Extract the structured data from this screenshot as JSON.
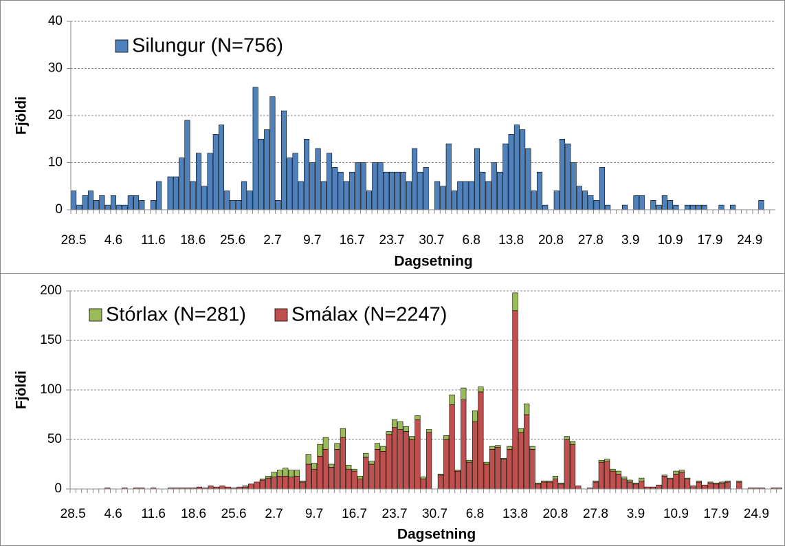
{
  "chart_data": [
    {
      "type": "bar",
      "title": null,
      "legend": "top-left",
      "ylabel": "Fjöldi",
      "xlabel": "Dagsetning",
      "categories": [
        "28.5",
        null,
        null,
        null,
        null,
        null,
        null,
        "4.6",
        null,
        null,
        null,
        null,
        null,
        null,
        "11.6",
        null,
        null,
        null,
        null,
        null,
        null,
        "18.6",
        null,
        null,
        null,
        null,
        null,
        null,
        "25.6",
        null,
        null,
        null,
        null,
        null,
        null,
        "2.7",
        null,
        null,
        null,
        null,
        null,
        null,
        "9.7",
        null,
        null,
        null,
        null,
        null,
        null,
        "16.7",
        null,
        null,
        null,
        null,
        null,
        null,
        "23.7",
        null,
        null,
        null,
        null,
        null,
        null,
        "30.7",
        null,
        null,
        null,
        null,
        null,
        null,
        "6.8",
        null,
        null,
        null,
        null,
        null,
        null,
        "13.8",
        null,
        null,
        null,
        null,
        null,
        null,
        "20.8",
        null,
        null,
        null,
        null,
        null,
        null,
        "27.8",
        null,
        null,
        null,
        null,
        null,
        null,
        "3.9",
        null,
        null,
        null,
        null,
        null,
        null,
        "10.9",
        null,
        null,
        null,
        null,
        null,
        null,
        "17.9",
        null,
        null,
        null,
        null,
        null,
        null,
        "24.9",
        null,
        null,
        null,
        null
      ],
      "series": [
        {
          "name": "Silungur (N=756)",
          "color": "#4f81bd",
          "values": [
            4,
            1,
            3,
            4,
            2,
            3,
            1,
            3,
            1,
            1,
            3,
            3,
            2,
            0,
            2,
            6,
            0,
            7,
            7,
            11,
            19,
            6,
            12,
            5,
            12,
            16,
            18,
            4,
            2,
            2,
            6,
            4,
            26,
            15,
            17,
            24,
            2,
            21,
            11,
            12,
            6,
            15,
            10,
            13,
            6,
            12,
            9,
            8,
            6,
            8,
            10,
            10,
            4,
            10,
            10,
            8,
            8,
            8,
            8,
            6,
            13,
            8,
            9,
            0,
            6,
            5,
            14,
            4,
            6,
            6,
            6,
            13,
            8,
            6,
            10,
            8,
            14,
            16,
            18,
            17,
            13,
            4,
            8,
            1,
            0,
            4,
            15,
            14,
            10,
            5,
            4,
            3,
            2,
            9,
            1,
            0,
            0,
            1,
            0,
            3,
            3,
            0,
            2,
            1,
            3,
            2,
            1,
            0,
            1,
            1,
            1,
            1,
            0,
            0,
            1,
            0,
            1,
            0,
            0,
            0,
            0,
            2,
            0,
            0
          ]
        }
      ],
      "ylim": [
        0,
        40
      ],
      "yticks": [
        0,
        10,
        20,
        30,
        40
      ],
      "grid": true
    },
    {
      "type": "stacked_bar",
      "title": null,
      "legend": "top-left",
      "ylabel": "Fjöldi",
      "xlabel": "Dagsetning",
      "categories": [
        "28.5",
        null,
        null,
        null,
        null,
        null,
        null,
        "4.6",
        null,
        null,
        null,
        null,
        null,
        null,
        "11.6",
        null,
        null,
        null,
        null,
        null,
        null,
        "18.6",
        null,
        null,
        null,
        null,
        null,
        null,
        "25.6",
        null,
        null,
        null,
        null,
        null,
        null,
        "2.7",
        null,
        null,
        null,
        null,
        null,
        null,
        "9.7",
        null,
        null,
        null,
        null,
        null,
        null,
        "16.7",
        null,
        null,
        null,
        null,
        null,
        null,
        "23.7",
        null,
        null,
        null,
        null,
        null,
        null,
        "30.7",
        null,
        null,
        null,
        null,
        null,
        null,
        "6.8",
        null,
        null,
        null,
        null,
        null,
        null,
        "13.8",
        null,
        null,
        null,
        null,
        null,
        null,
        "20.8",
        null,
        null,
        null,
        null,
        null,
        null,
        "27.8",
        null,
        null,
        null,
        null,
        null,
        null,
        "3.9",
        null,
        null,
        null,
        null,
        null,
        null,
        "10.9",
        null,
        null,
        null,
        null,
        null,
        null,
        "17.9",
        null,
        null,
        null,
        null,
        null,
        null,
        "24.9",
        null,
        null,
        null,
        null
      ],
      "series": [
        {
          "name": "Smálax (N=2247)",
          "color": "#c0504d",
          "values": [
            0,
            0,
            0,
            0,
            0,
            0,
            1,
            0,
            0,
            1,
            0,
            1,
            1,
            0,
            1,
            0,
            0,
            1,
            1,
            1,
            1,
            1,
            2,
            1,
            3,
            2,
            3,
            2,
            1,
            2,
            2,
            5,
            7,
            9,
            11,
            12,
            13,
            13,
            12,
            13,
            7,
            25,
            20,
            33,
            40,
            22,
            40,
            52,
            20,
            18,
            10,
            32,
            25,
            40,
            38,
            55,
            62,
            60,
            58,
            50,
            70,
            10,
            57,
            0,
            14,
            50,
            85,
            18,
            90,
            27,
            68,
            98,
            25,
            40,
            42,
            30,
            40,
            180,
            57,
            75,
            40,
            5,
            7,
            7,
            10,
            5,
            50,
            45,
            3,
            0,
            1,
            7,
            27,
            28,
            18,
            15,
            10,
            7,
            5,
            8,
            2,
            2,
            4,
            13,
            10,
            15,
            17,
            10,
            3,
            7,
            4,
            6,
            5,
            6,
            7,
            0,
            7,
            0,
            1,
            1,
            1,
            0,
            1,
            1
          ]
        },
        {
          "name": "Stórlax (N=281)",
          "color": "#9bbb59",
          "values": [
            0,
            0,
            0,
            0,
            0,
            0,
            0,
            0,
            0,
            0,
            0,
            0,
            0,
            0,
            0,
            0,
            0,
            0,
            0,
            0,
            0,
            0,
            0,
            0,
            0,
            0,
            0,
            0,
            0,
            0,
            1,
            0,
            0,
            1,
            2,
            5,
            6,
            8,
            7,
            6,
            1,
            10,
            6,
            12,
            12,
            3,
            6,
            9,
            4,
            2,
            3,
            4,
            3,
            6,
            5,
            3,
            8,
            8,
            5,
            3,
            4,
            2,
            3,
            0,
            1,
            4,
            10,
            1,
            12,
            2,
            11,
            5,
            2,
            3,
            2,
            1,
            3,
            18,
            4,
            11,
            3,
            1,
            1,
            1,
            3,
            1,
            3,
            3,
            0,
            0,
            0,
            1,
            2,
            2,
            2,
            3,
            2,
            2,
            1,
            3,
            0,
            0,
            0,
            1,
            1,
            3,
            2,
            1,
            0,
            1,
            0,
            1,
            1,
            1,
            1,
            0,
            1,
            0,
            0,
            0,
            0,
            0,
            0,
            0
          ]
        }
      ],
      "ylim": [
        0,
        200
      ],
      "yticks": [
        0,
        50,
        100,
        150,
        200
      ],
      "grid": true
    }
  ]
}
